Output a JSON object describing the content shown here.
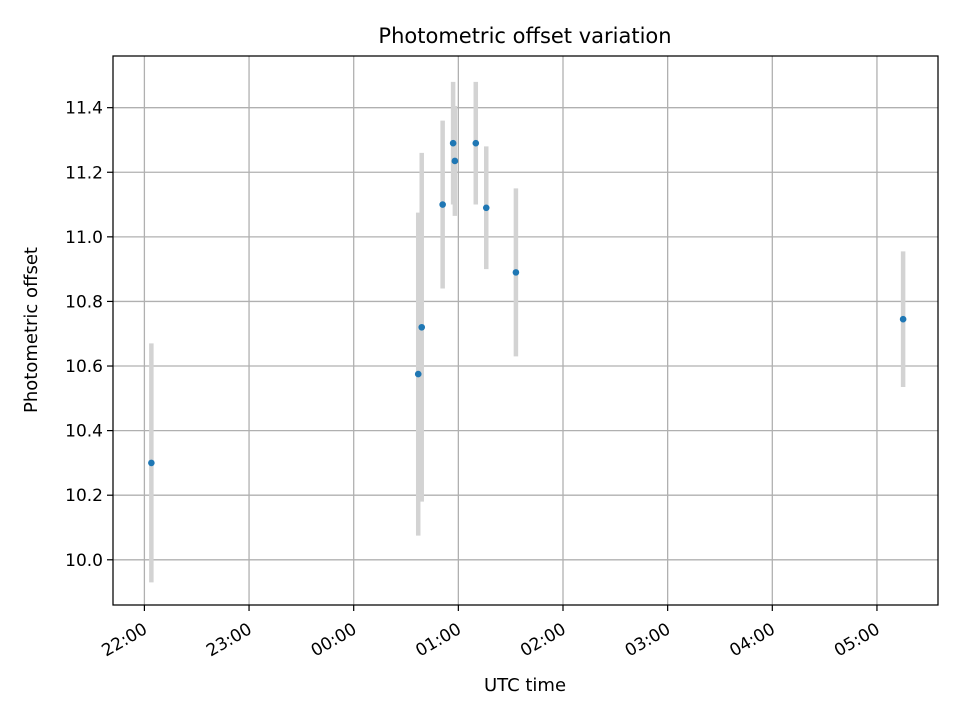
{
  "chart_data": {
    "type": "scatter",
    "title": "Photometric offset variation",
    "xlabel": "UTC time",
    "ylabel": "Photometric offset",
    "x_unit": "UTC time of night (hours past 22:00)",
    "x_ticks": [
      "22:00",
      "23:00",
      "00:00",
      "01:00",
      "02:00",
      "03:00",
      "04:00",
      "05:00"
    ],
    "y_ticks": [
      "10.0",
      "10.2",
      "10.4",
      "10.6",
      "10.8",
      "11.0",
      "11.2",
      "11.4"
    ],
    "xlim": [
      "21:42",
      "05:35"
    ],
    "ylim": [
      9.86,
      11.56
    ],
    "grid": true,
    "legend": "none",
    "colors": {
      "point": "#1f77b4",
      "errorbar": "#d3d3d3",
      "grid": "#b0b0b0"
    },
    "points": [
      {
        "time": "22:04",
        "y": 10.3,
        "yerr": 0.37
      },
      {
        "time": "00:37",
        "y": 10.575,
        "yerr": 0.5
      },
      {
        "time": "00:39",
        "y": 10.72,
        "yerr": 0.54
      },
      {
        "time": "00:51",
        "y": 11.1,
        "yerr": 0.26
      },
      {
        "time": "00:57",
        "y": 11.29,
        "yerr": 0.19
      },
      {
        "time": "00:58",
        "y": 11.235,
        "yerr": 0.17
      },
      {
        "time": "01:10",
        "y": 11.29,
        "yerr": 0.19
      },
      {
        "time": "01:16",
        "y": 11.09,
        "yerr": 0.19
      },
      {
        "time": "01:33",
        "y": 10.89,
        "yerr": 0.26
      },
      {
        "time": "05:15",
        "y": 10.745,
        "yerr": 0.21
      }
    ]
  }
}
